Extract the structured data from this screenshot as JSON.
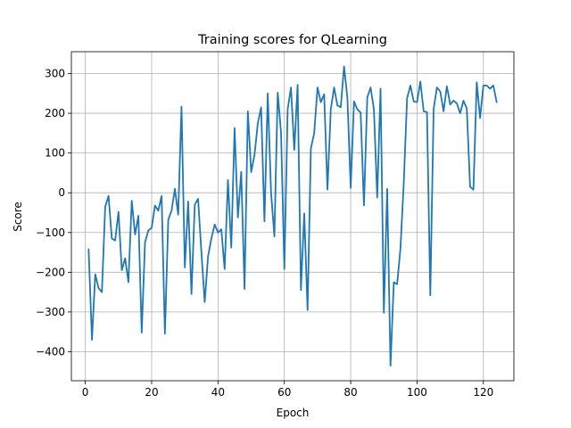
{
  "chart_data": {
    "type": "line",
    "title": "Training scores for QLearning",
    "xlabel": "Epoch",
    "ylabel": "Score",
    "xlim": [
      -4.2,
      129.2
    ],
    "ylim": [
      -473,
      355
    ],
    "xticks": [
      0,
      20,
      40,
      60,
      80,
      100,
      120
    ],
    "yticks": [
      -400,
      -300,
      -200,
      -100,
      0,
      100,
      200,
      300
    ],
    "grid": true,
    "legend": "none",
    "series": [
      {
        "color": "#1f77b4",
        "x_start": 1,
        "x_step": 1,
        "values": [
          -142,
          -370,
          -205,
          -240,
          -250,
          -35,
          -8,
          -115,
          -120,
          -48,
          -195,
          -165,
          -225,
          -20,
          -105,
          -58,
          -352,
          -125,
          -95,
          -88,
          -32,
          -45,
          -8,
          -355,
          -68,
          -45,
          10,
          -55,
          217,
          -188,
          -22,
          -255,
          -30,
          -15,
          -150,
          -275,
          -160,
          -115,
          -80,
          -100,
          -92,
          -192,
          32,
          -138,
          163,
          -62,
          53,
          -242,
          205,
          52,
          95,
          175,
          215,
          -72,
          250,
          0,
          -110,
          252,
          152,
          -192,
          210,
          265,
          108,
          272,
          -245,
          -52,
          -295,
          112,
          150,
          265,
          228,
          248,
          8,
          210,
          265,
          220,
          215,
          318,
          240,
          12,
          230,
          210,
          202,
          -32,
          240,
          265,
          210,
          -12,
          262,
          -302,
          10,
          -435,
          -225,
          -230,
          -140,
          25,
          238,
          270,
          230,
          228,
          280,
          205,
          203,
          -258,
          210,
          265,
          255,
          205,
          268,
          222,
          232,
          225,
          200,
          232,
          212,
          15,
          8,
          278,
          188,
          270,
          270,
          262,
          270,
          228
        ]
      }
    ]
  }
}
